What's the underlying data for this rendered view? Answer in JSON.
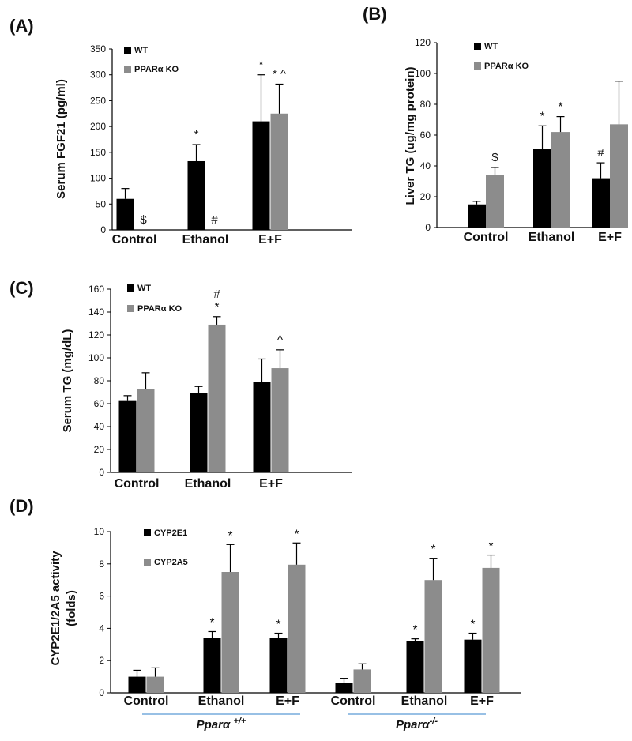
{
  "colors": {
    "wt": "#000000",
    "ko": "#8c8c8c",
    "axis": "#000000",
    "group_line": "#5b9bd5"
  },
  "chart_data": [
    {
      "type": "bar",
      "panel": "(A)",
      "ylabel": "Serum FGF21 (pg/ml)",
      "ylim": [
        0,
        350
      ],
      "yticks": [
        0,
        50,
        100,
        150,
        200,
        250,
        300,
        350
      ],
      "categories": [
        "Control",
        "Ethanol",
        "E+F"
      ],
      "series": [
        {
          "name": "WT",
          "values": [
            60,
            133,
            210
          ],
          "errors": [
            20,
            32,
            90
          ],
          "annotations": [
            "",
            "*",
            "*"
          ]
        },
        {
          "name": "PPARα KO",
          "values": [
            0,
            0,
            225
          ],
          "errors": [
            0,
            0,
            57
          ],
          "annotations": [
            "$",
            "#",
            "* ^"
          ]
        }
      ],
      "legend": "top-left"
    },
    {
      "type": "bar",
      "panel": "(B)",
      "ylabel": "Liver TG (ug/mg protein)",
      "ylim": [
        0,
        120
      ],
      "yticks": [
        0,
        20,
        40,
        60,
        80,
        100,
        120
      ],
      "categories": [
        "Control",
        "Ethanol",
        "E+F"
      ],
      "series": [
        {
          "name": "WT",
          "values": [
            15,
            51,
            32
          ],
          "errors": [
            2,
            15,
            10
          ],
          "annotations": [
            "",
            "*",
            "#"
          ]
        },
        {
          "name": "PPARα KO",
          "values": [
            34,
            62,
            67
          ],
          "errors": [
            5,
            10,
            28
          ],
          "annotations": [
            "$",
            "*",
            ""
          ]
        }
      ],
      "legend": "top-left"
    },
    {
      "type": "bar",
      "panel": "(C)",
      "ylabel": "Serum TG (mg/dL)",
      "ylim": [
        0,
        160
      ],
      "yticks": [
        0,
        20,
        40,
        60,
        80,
        100,
        120,
        140,
        160
      ],
      "categories": [
        "Control",
        "Ethanol",
        "E+F"
      ],
      "series": [
        {
          "name": "WT",
          "values": [
            63,
            69,
            79
          ],
          "errors": [
            4,
            6,
            20
          ],
          "annotations": [
            "",
            "",
            ""
          ]
        },
        {
          "name": "PPARα KO",
          "values": [
            73,
            129,
            91
          ],
          "errors": [
            14,
            7,
            16
          ],
          "annotations": [
            "",
            "#\n*",
            "^"
          ]
        }
      ],
      "legend": "top-left"
    },
    {
      "type": "bar",
      "panel": "(D)",
      "ylabel": [
        "CYP2E1/2A5 activity",
        "(folds)"
      ],
      "ylim": [
        0,
        10
      ],
      "yticks": [
        0,
        2,
        4,
        6,
        8,
        10
      ],
      "categories": [
        "Control",
        "Ethanol",
        "E+F",
        "Control",
        "Ethanol",
        "E+F"
      ],
      "groups": [
        {
          "label": "Pparα +/+",
          "base": "Pparα ",
          "sup": "+/+",
          "span": [
            0,
            2
          ]
        },
        {
          "label": "Pparα -/-",
          "base": "Pparα",
          "sup": "-/-",
          "span": [
            3,
            5
          ]
        }
      ],
      "series": [
        {
          "name": "CYP2E1",
          "values": [
            1.0,
            3.4,
            3.4,
            0.6,
            3.2,
            3.3
          ],
          "errors": [
            0.4,
            0.4,
            0.3,
            0.3,
            0.15,
            0.4
          ],
          "annotations": [
            "",
            "*",
            "*",
            "",
            "*",
            "*"
          ]
        },
        {
          "name": "CYP2A5",
          "values": [
            1.0,
            7.5,
            7.95,
            1.45,
            7.0,
            7.75
          ],
          "errors": [
            0.55,
            1.7,
            1.35,
            0.35,
            1.35,
            0.8
          ],
          "annotations": [
            "",
            "*",
            "*",
            "",
            "*",
            "*"
          ]
        }
      ],
      "legend": "top-left"
    }
  ]
}
